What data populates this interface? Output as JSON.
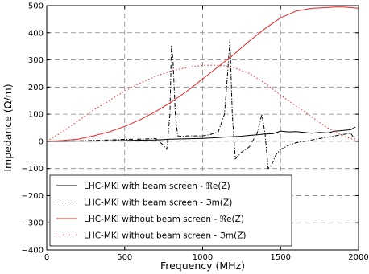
{
  "chart_data": {
    "type": "line",
    "xlabel": "Frequency (MHz)",
    "ylabel": "Impedance (Ω/m)",
    "xlim": [
      0,
      2000
    ],
    "ylim": [
      -400,
      500
    ],
    "xticks": [
      0,
      500,
      1000,
      1500,
      2000
    ],
    "yticks": [
      -400,
      -300,
      -200,
      -100,
      0,
      100,
      200,
      300,
      400,
      500
    ],
    "grid": true,
    "legend_position": "bottom-left",
    "series": [
      {
        "name": "LHC-MKI with beam screen - ℜe(Z)",
        "color": "#000000",
        "dash": "solid",
        "x": [
          0,
          100,
          200,
          300,
          400,
          500,
          600,
          700,
          800,
          900,
          1000,
          1100,
          1150,
          1200,
          1250,
          1300,
          1350,
          1400,
          1450,
          1500,
          1550,
          1600,
          1650,
          1700,
          1750,
          1800,
          1850,
          1900,
          1950,
          1980
        ],
        "y": [
          0,
          0,
          1,
          1,
          2,
          3,
          4,
          5,
          8,
          9,
          11,
          14,
          16,
          17,
          19,
          22,
          24,
          27,
          28,
          38,
          35,
          36,
          33,
          30,
          33,
          31,
          38,
          40,
          43,
          53
        ]
      },
      {
        "name": "LHC-MKI with beam screen - ℑm(Z)",
        "color": "#000000",
        "dash": "dashdot",
        "x": [
          0,
          100,
          200,
          300,
          400,
          500,
          600,
          700,
          740,
          770,
          790,
          800,
          810,
          825,
          840,
          870,
          900,
          1000,
          1050,
          1100,
          1140,
          1160,
          1175,
          1190,
          1210,
          1250,
          1300,
          1350,
          1380,
          1400,
          1420,
          1440,
          1470,
          1500,
          1550,
          1600,
          1700,
          1800,
          1900,
          1950,
          1980
        ],
        "y": [
          0,
          1,
          2,
          3,
          5,
          7,
          8,
          10,
          -10,
          -30,
          100,
          355,
          300,
          100,
          20,
          18,
          20,
          20,
          25,
          35,
          100,
          250,
          375,
          100,
          -65,
          -40,
          -20,
          30,
          100,
          30,
          -100,
          -90,
          -50,
          -30,
          -15,
          -5,
          5,
          15,
          25,
          30,
          5
        ]
      },
      {
        "name": "LHC-MKI without beam screen - ℜe(Z)",
        "color": "#ee2222",
        "dash": "solid",
        "x": [
          0,
          100,
          200,
          300,
          400,
          500,
          600,
          700,
          800,
          900,
          1000,
          1100,
          1200,
          1300,
          1400,
          1500,
          1600,
          1700,
          1800,
          1850,
          1900,
          1950,
          2000
        ],
        "y": [
          0,
          3,
          8,
          20,
          35,
          55,
          80,
          110,
          145,
          185,
          230,
          275,
          320,
          370,
          415,
          455,
          480,
          490,
          493,
          495,
          495,
          493,
          490
        ]
      },
      {
        "name": "LHC-MKI without beam screen - ℑm(Z)",
        "color": "#ee2222",
        "dash": "dotted",
        "x": [
          0,
          100,
          200,
          300,
          400,
          500,
          600,
          700,
          800,
          900,
          1000,
          1100,
          1150,
          1200,
          1300,
          1400,
          1500,
          1600,
          1700,
          1800,
          1900,
          2000
        ],
        "y": [
          0,
          35,
          75,
          115,
          150,
          185,
          215,
          240,
          260,
          272,
          280,
          280,
          278,
          272,
          250,
          215,
          170,
          130,
          90,
          50,
          20,
          0
        ]
      }
    ]
  }
}
